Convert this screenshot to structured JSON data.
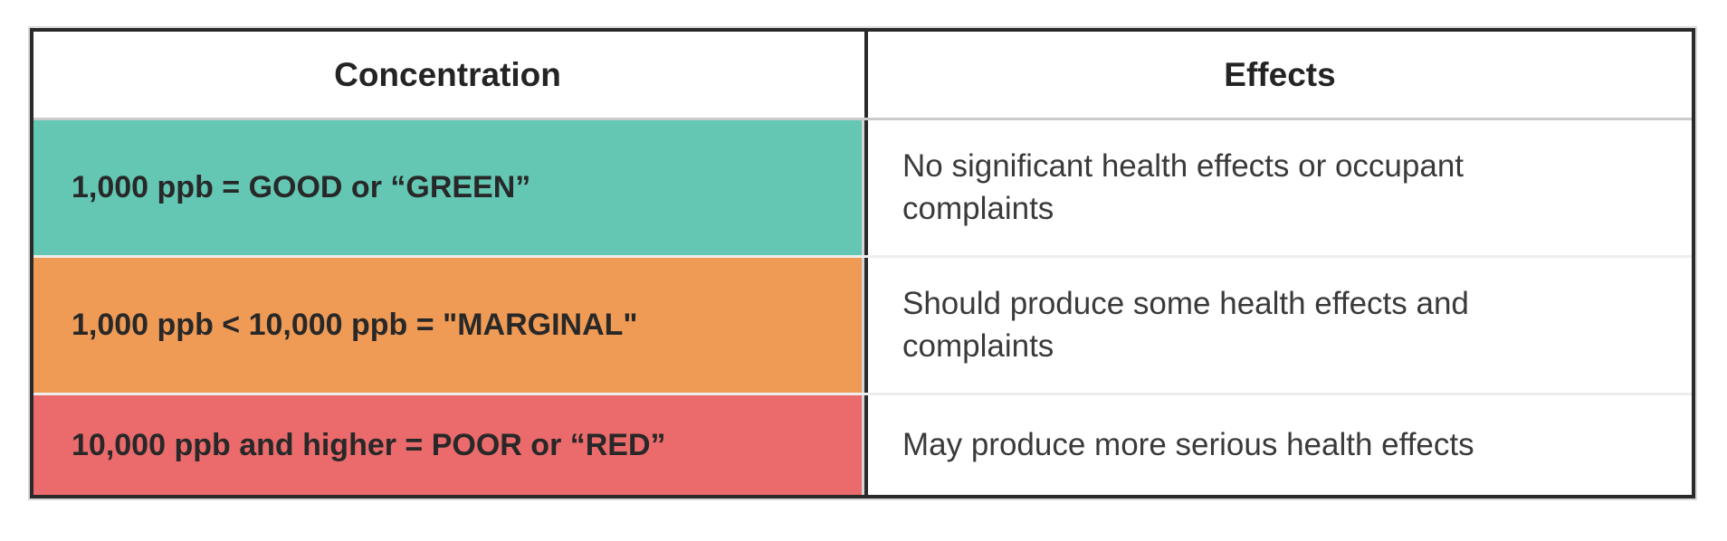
{
  "table": {
    "headers": {
      "concentration": "Concentration",
      "effects": "Effects"
    },
    "rows": [
      {
        "level": "good",
        "concentration": "1,000 ppb = GOOD or “GREEN”",
        "effect": "No significant health effects or occupant complaints",
        "color": "#63C7B4"
      },
      {
        "level": "marginal",
        "concentration": "1,000 ppb < 10,000 ppb = \"MARGINAL\"",
        "effect": "Should produce some health effects and complaints",
        "color": "#F09B55"
      },
      {
        "level": "poor",
        "concentration": "10,000 ppb and higher = POOR or “RED”",
        "effect": "May produce more serious health effects",
        "color": "#EB6A6C"
      }
    ]
  },
  "chart_data": {
    "type": "table",
    "columns": [
      "Concentration",
      "Effects"
    ],
    "rows": [
      [
        "1,000 ppb = GOOD or “GREEN”",
        "No significant health effects or occupant complaints"
      ],
      [
        "1,000 ppb < 10,000 ppb = \"MARGINAL\"",
        "Should produce some health effects and complaints"
      ],
      [
        "10,000 ppb and higher = POOR or “RED”",
        "May produce more serious health effects"
      ]
    ],
    "row_colors": [
      "#63C7B4",
      "#F09B55",
      "#EB6A6C"
    ],
    "legend_position": "none",
    "grid": "table-borders"
  },
  "colors": {
    "border_dark": "#2A2A2A",
    "outer_edge_gray": "#D9D9D9",
    "header_divider": "#CBCBCB",
    "row_divider": "#EDEDED",
    "good_teal": "#63C7B4",
    "marginal_orange": "#F09B55",
    "poor_red": "#EB6A6C"
  }
}
